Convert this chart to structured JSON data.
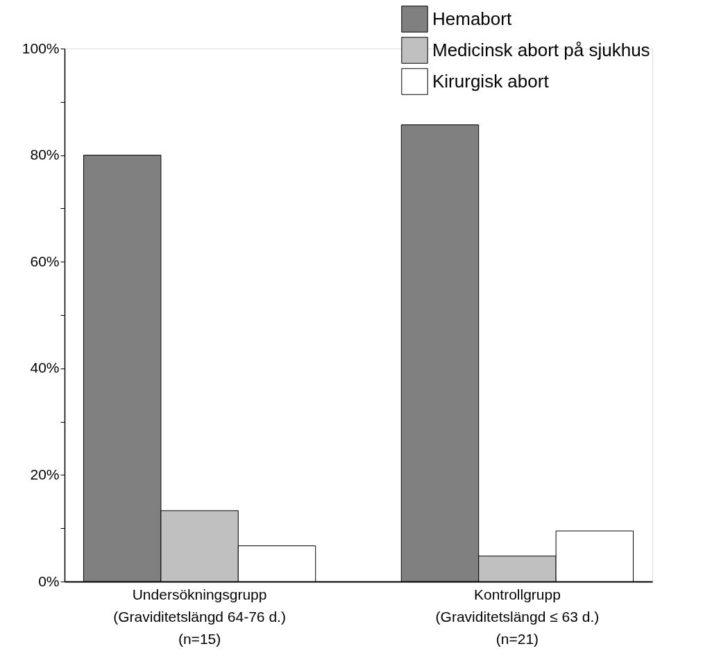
{
  "chart_data": {
    "type": "bar",
    "categories": [
      "Undersökningsgrupp\n(Graviditetslängd 64-76 d.)\n(n=15)",
      "Kontrollgrupp\n(Graviditetslängd ≤ 63 d.)\n(n=21)"
    ],
    "series": [
      {
        "name": "Hemabort",
        "color": "#808080",
        "values": [
          80.0,
          85.7
        ]
      },
      {
        "name": "Medicinsk abort på sjukhus",
        "color": "#c0c0c0",
        "values": [
          13.3,
          4.8
        ]
      },
      {
        "name": "Kirurgisk abort",
        "color": "#ffffff",
        "values": [
          6.7,
          9.5
        ]
      }
    ],
    "ylim": [
      0,
      100
    ],
    "yticks": [
      {
        "value": 0,
        "label": "0%"
      },
      {
        "value": 10,
        "label": null
      },
      {
        "value": 20,
        "label": "20%"
      },
      {
        "value": 30,
        "label": null
      },
      {
        "value": 40,
        "label": "40%"
      },
      {
        "value": 50,
        "label": null
      },
      {
        "value": 60,
        "label": "60%"
      },
      {
        "value": 70,
        "label": null
      },
      {
        "value": 80,
        "label": "80%"
      },
      {
        "value": 90,
        "label": null
      },
      {
        "value": 100,
        "label": "100%"
      }
    ],
    "grid": false,
    "legend": "top right"
  }
}
